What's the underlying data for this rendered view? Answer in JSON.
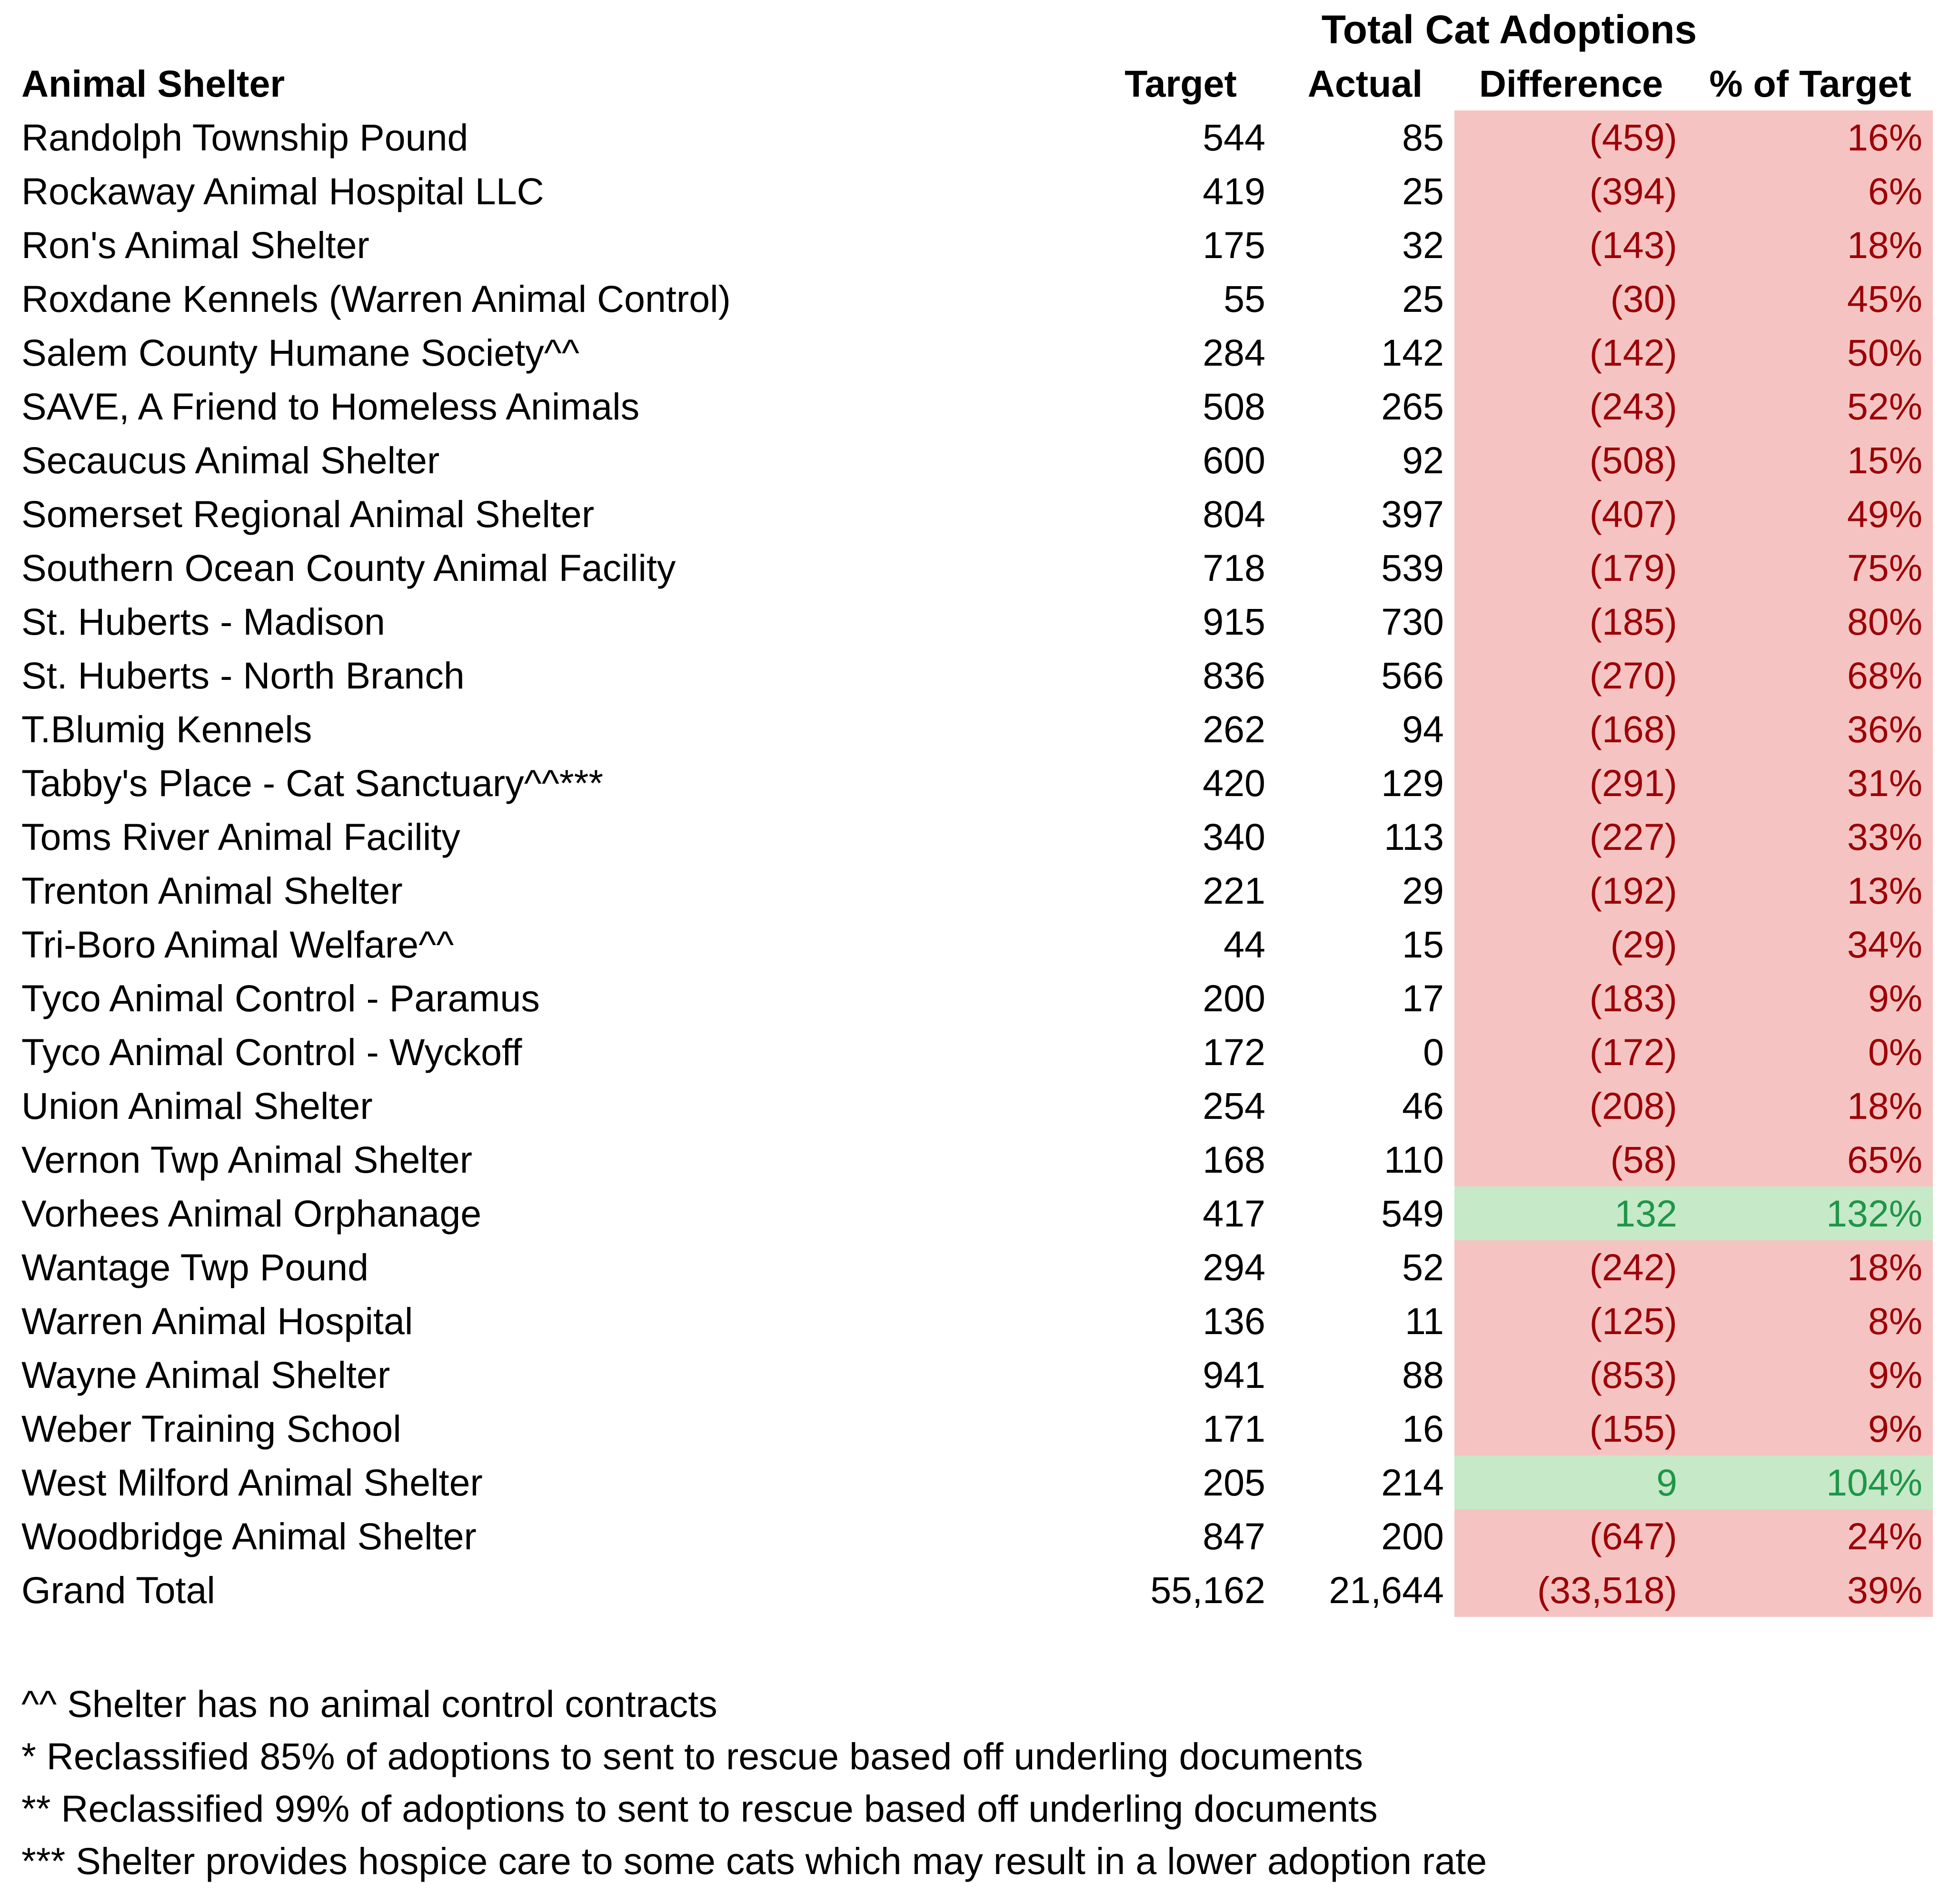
{
  "chart_data": {
    "type": "table",
    "title": "Total Cat Adoptions",
    "columns": {
      "shelter": "Animal Shelter",
      "target": "Target",
      "actual": "Actual",
      "difference": "Difference",
      "pct": "% of Target"
    },
    "rows": [
      {
        "shelter": "Randolph Township Pound",
        "target": "544",
        "actual": "85",
        "difference": "(459)",
        "pct": "16%",
        "status": "neg"
      },
      {
        "shelter": "Rockaway Animal Hospital LLC",
        "target": "419",
        "actual": "25",
        "difference": "(394)",
        "pct": "6%",
        "status": "neg"
      },
      {
        "shelter": "Ron's Animal Shelter",
        "target": "175",
        "actual": "32",
        "difference": "(143)",
        "pct": "18%",
        "status": "neg"
      },
      {
        "shelter": "Roxdane Kennels (Warren Animal Control)",
        "target": "55",
        "actual": "25",
        "difference": "(30)",
        "pct": "45%",
        "status": "neg"
      },
      {
        "shelter": "Salem County Humane Society^^",
        "target": "284",
        "actual": "142",
        "difference": "(142)",
        "pct": "50%",
        "status": "neg"
      },
      {
        "shelter": "SAVE, A Friend to Homeless Animals",
        "target": "508",
        "actual": "265",
        "difference": "(243)",
        "pct": "52%",
        "status": "neg"
      },
      {
        "shelter": "Secaucus Animal Shelter",
        "target": "600",
        "actual": "92",
        "difference": "(508)",
        "pct": "15%",
        "status": "neg"
      },
      {
        "shelter": "Somerset Regional Animal Shelter",
        "target": "804",
        "actual": "397",
        "difference": "(407)",
        "pct": "49%",
        "status": "neg"
      },
      {
        "shelter": "Southern Ocean County Animal Facility",
        "target": "718",
        "actual": "539",
        "difference": "(179)",
        "pct": "75%",
        "status": "neg"
      },
      {
        "shelter": "St. Huberts - Madison",
        "target": "915",
        "actual": "730",
        "difference": "(185)",
        "pct": "80%",
        "status": "neg"
      },
      {
        "shelter": "St. Huberts - North Branch",
        "target": "836",
        "actual": "566",
        "difference": "(270)",
        "pct": "68%",
        "status": "neg"
      },
      {
        "shelter": "T.Blumig Kennels",
        "target": "262",
        "actual": "94",
        "difference": "(168)",
        "pct": "36%",
        "status": "neg"
      },
      {
        "shelter": "Tabby's Place - Cat Sanctuary^^***",
        "target": "420",
        "actual": "129",
        "difference": "(291)",
        "pct": "31%",
        "status": "neg"
      },
      {
        "shelter": "Toms River Animal Facility",
        "target": "340",
        "actual": "113",
        "difference": "(227)",
        "pct": "33%",
        "status": "neg"
      },
      {
        "shelter": "Trenton Animal Shelter",
        "target": "221",
        "actual": "29",
        "difference": "(192)",
        "pct": "13%",
        "status": "neg"
      },
      {
        "shelter": "Tri-Boro Animal Welfare^^",
        "target": "44",
        "actual": "15",
        "difference": "(29)",
        "pct": "34%",
        "status": "neg"
      },
      {
        "shelter": "Tyco Animal Control - Paramus",
        "target": "200",
        "actual": "17",
        "difference": "(183)",
        "pct": "9%",
        "status": "neg"
      },
      {
        "shelter": "Tyco Animal Control - Wyckoff",
        "target": "172",
        "actual": "0",
        "difference": "(172)",
        "pct": "0%",
        "status": "neg"
      },
      {
        "shelter": "Union Animal Shelter",
        "target": "254",
        "actual": "46",
        "difference": "(208)",
        "pct": "18%",
        "status": "neg"
      },
      {
        "shelter": "Vernon Twp Animal Shelter",
        "target": "168",
        "actual": "110",
        "difference": "(58)",
        "pct": "65%",
        "status": "neg"
      },
      {
        "shelter": "Vorhees Animal Orphanage",
        "target": "417",
        "actual": "549",
        "difference": "132",
        "pct": "132%",
        "status": "pos"
      },
      {
        "shelter": "Wantage Twp Pound",
        "target": "294",
        "actual": "52",
        "difference": "(242)",
        "pct": "18%",
        "status": "neg"
      },
      {
        "shelter": "Warren Animal Hospital",
        "target": "136",
        "actual": "11",
        "difference": "(125)",
        "pct": "8%",
        "status": "neg"
      },
      {
        "shelter": "Wayne Animal Shelter",
        "target": "941",
        "actual": "88",
        "difference": "(853)",
        "pct": "9%",
        "status": "neg"
      },
      {
        "shelter": "Weber Training School",
        "target": "171",
        "actual": "16",
        "difference": "(155)",
        "pct": "9%",
        "status": "neg"
      },
      {
        "shelter": "West Milford Animal Shelter",
        "target": "205",
        "actual": "214",
        "difference": "9",
        "pct": "104%",
        "status": "pos"
      },
      {
        "shelter": "Woodbridge Animal Shelter",
        "target": "847",
        "actual": "200",
        "difference": "(647)",
        "pct": "24%",
        "status": "neg"
      },
      {
        "shelter": "Grand Total",
        "target": "55,162",
        "actual": "21,644",
        "difference": "(33,518)",
        "pct": "39%",
        "status": "neg"
      }
    ]
  },
  "footnotes": [
    "^^ Shelter has no animal control contracts",
    "* Reclassified 85% of adoptions to sent to rescue based off underling documents",
    "** Reclassified 99% of adoptions to sent to rescue based off underling documents",
    "*** Shelter provides hospice care to some cats which may result in a lower adoption rate"
  ],
  "colors": {
    "negative_fill": "#f5c4c2",
    "negative_text": "#9c0006",
    "positive_fill": "#c6e9c8",
    "positive_text": "#1e9648"
  }
}
